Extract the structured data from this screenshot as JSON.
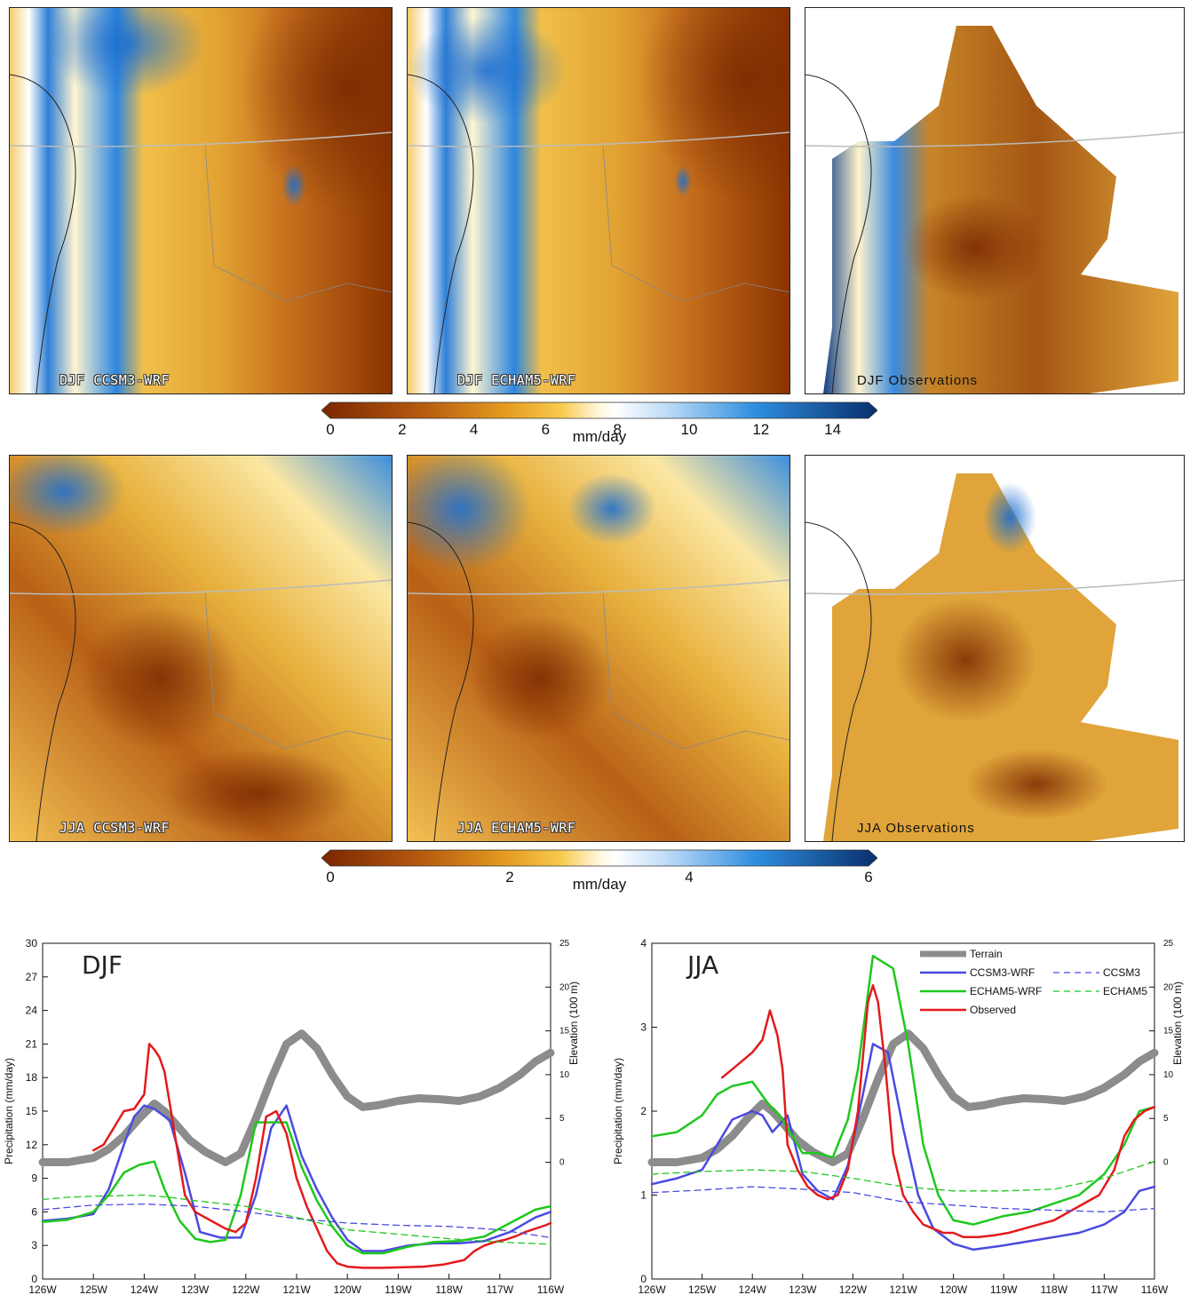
{
  "maps": {
    "djf": [
      {
        "label": "DJF CCSM3-WRF"
      },
      {
        "label": "DJF ECHAM5-WRF"
      },
      {
        "label": "DJF Observations"
      }
    ],
    "jja": [
      {
        "label": "JJA CCSM3-WRF"
      },
      {
        "label": "JJA ECHAM5-WRF"
      },
      {
        "label": "JJA Observations"
      }
    ]
  },
  "colorbars": {
    "djf": {
      "ticks": [
        "0",
        "2",
        "4",
        "6",
        "8",
        "10",
        "12",
        "14"
      ],
      "unit": "mm/day",
      "min": 0,
      "max": 15
    },
    "jja": {
      "ticks": [
        "0",
        "2",
        "4",
        "6"
      ],
      "unit": "mm/day",
      "min": 0,
      "max": 6
    }
  },
  "chart_data": [
    {
      "type": "line",
      "title": "DJF",
      "ylabel": "Precipitation (mm/day)",
      "y2label": "Elevation (100 m)",
      "ylim": [
        0,
        30
      ],
      "yticks": [
        "0",
        "3",
        "6",
        "9",
        "12",
        "15",
        "18",
        "21",
        "24",
        "27",
        "30"
      ],
      "y2lim": [
        -13.333,
        25
      ],
      "y2ticks": [
        "0",
        "5",
        "10",
        "15",
        "20",
        "25"
      ],
      "xlim": [
        -126,
        -116
      ],
      "xticks": [
        "126W",
        "125W",
        "124W",
        "123W",
        "122W",
        "121W",
        "120W",
        "119W",
        "118W",
        "117W",
        "116W"
      ],
      "series": [
        {
          "name": "Terrain",
          "axis": "right",
          "color": "#8c8c8c",
          "width": 9,
          "dash": "",
          "x": [
            -126,
            -125.5,
            -125,
            -124.7,
            -124.4,
            -124.1,
            -123.8,
            -123.6,
            -123.4,
            -123.1,
            -122.8,
            -122.4,
            -122.1,
            -121.8,
            -121.5,
            -121.2,
            -120.9,
            -120.6,
            -120.3,
            -120,
            -119.7,
            -119.4,
            -119,
            -118.6,
            -118.2,
            -117.8,
            -117.4,
            -117,
            -116.6,
            -116.3,
            -116
          ],
          "y": [
            0,
            0,
            0.5,
            1.5,
            3,
            5,
            6.7,
            5.8,
            4.5,
            2.5,
            1.2,
            0,
            1,
            5,
            9.5,
            13.5,
            14.7,
            13,
            10,
            7.5,
            6.3,
            6.5,
            7,
            7.3,
            7.2,
            7,
            7.5,
            8.5,
            10,
            11.5,
            12.5
          ]
        },
        {
          "name": "CCSM3-WRF",
          "axis": "left",
          "color": "#4a4ae0",
          "width": 2.5,
          "dash": "",
          "x": [
            -126,
            -125.5,
            -125,
            -124.7,
            -124.4,
            -124.2,
            -124,
            -123.8,
            -123.5,
            -123.2,
            -122.9,
            -122.5,
            -122.1,
            -121.8,
            -121.5,
            -121.2,
            -120.9,
            -120.6,
            -120.3,
            -120,
            -119.7,
            -119.3,
            -118.8,
            -118.3,
            -117.8,
            -117.3,
            -116.8,
            -116.3,
            -116
          ],
          "y": [
            5.2,
            5.4,
            5.8,
            8,
            12,
            14.5,
            15.5,
            15.2,
            14.2,
            9.5,
            4.2,
            3.7,
            3.7,
            7.5,
            13.5,
            15.5,
            11,
            8,
            5.5,
            3.5,
            2.5,
            2.5,
            3,
            3.2,
            3.2,
            3.4,
            4.2,
            5.5,
            6
          ]
        },
        {
          "name": "ECHAM5-WRF",
          "axis": "left",
          "color": "#1ec81e",
          "width": 2.5,
          "dash": "",
          "x": [
            -126,
            -125.5,
            -125,
            -124.7,
            -124.4,
            -124.1,
            -123.8,
            -123.6,
            -123.3,
            -123,
            -122.7,
            -122.4,
            -122.1,
            -121.8,
            -121.5,
            -121.2,
            -120.9,
            -120.6,
            -120.3,
            -120,
            -119.7,
            -119.3,
            -118.8,
            -118.3,
            -117.8,
            -117.3,
            -116.8,
            -116.3,
            -116
          ],
          "y": [
            5.1,
            5.3,
            6,
            7.5,
            9.5,
            10.2,
            10.5,
            8,
            5.2,
            3.6,
            3.3,
            3.5,
            7.5,
            14,
            14,
            14,
            10,
            7,
            4.7,
            3,
            2.3,
            2.3,
            2.9,
            3.3,
            3.4,
            3.8,
            5,
            6.2,
            6.5
          ]
        },
        {
          "name": "Observed",
          "axis": "left",
          "color": "#e31a1c",
          "width": 2.5,
          "dash": "",
          "x": [
            -125,
            -124.8,
            -124.6,
            -124.4,
            -124.2,
            -124,
            -123.9,
            -123.8,
            -123.7,
            -123.6,
            -123.4,
            -123.2,
            -123,
            -122.8,
            -122.6,
            -122.4,
            -122.2,
            -122,
            -121.8,
            -121.6,
            -121.4,
            -121.2,
            -121,
            -120.8,
            -120.6,
            -120.4,
            -120.2,
            -120,
            -119.7,
            -119.3,
            -118.9,
            -118.5,
            -118.1,
            -117.7,
            -117.5,
            -117.3,
            -117.1,
            -116.9,
            -116.7,
            -116.5,
            -116.3,
            -116.1,
            -116
          ],
          "y": [
            11.5,
            12,
            13.5,
            15,
            15.2,
            16.5,
            21,
            20.5,
            19.8,
            18.5,
            13,
            7.5,
            6,
            5.5,
            5,
            4.5,
            4.2,
            5,
            9,
            14.5,
            15,
            13,
            9,
            6.5,
            4.5,
            2.5,
            1.4,
            1.1,
            1.0,
            1.0,
            1.05,
            1.1,
            1.3,
            1.7,
            2.5,
            3,
            3.3,
            3.5,
            3.8,
            4.2,
            4.5,
            4.8,
            5
          ]
        },
        {
          "name": "CCSM3",
          "axis": "left",
          "color": "#4a4ae0",
          "width": 1.3,
          "dash": "7,5",
          "x": [
            -126,
            -125,
            -124,
            -123,
            -122,
            -121,
            -120,
            -119,
            -118,
            -117,
            -116
          ],
          "y": [
            6.2,
            6.6,
            6.7,
            6.5,
            6.0,
            5.4,
            5.0,
            4.8,
            4.7,
            4.4,
            3.7
          ]
        },
        {
          "name": "ECHAM5",
          "axis": "left",
          "color": "#1ec81e",
          "width": 1.3,
          "dash": "7,5",
          "x": [
            -126,
            -125.5,
            -125,
            -124,
            -123.5,
            -123,
            -122,
            -121,
            -120,
            -119,
            -118,
            -117,
            -116
          ],
          "y": [
            7.1,
            7.3,
            7.4,
            7.5,
            7.3,
            7.0,
            6.5,
            5.5,
            4.4,
            4.0,
            3.6,
            3.3,
            3.1
          ]
        }
      ]
    },
    {
      "type": "line",
      "title": "JJA",
      "ylabel": "Precipitation (mm/day)",
      "y2label": "Elevation (100 m)",
      "ylim": [
        0,
        4
      ],
      "yticks": [
        "0",
        "1",
        "2",
        "3",
        "4"
      ],
      "y2lim": [
        -13.333,
        25
      ],
      "y2ticks": [
        "0",
        "5",
        "10",
        "15",
        "20",
        "25"
      ],
      "xlim": [
        -126,
        -116
      ],
      "xticks": [
        "126W",
        "125W",
        "124W",
        "123W",
        "122W",
        "121W",
        "120W",
        "119W",
        "118W",
        "117W",
        "116W"
      ],
      "legend": {
        "position": "top-right"
      },
      "series": [
        {
          "name": "Terrain",
          "axis": "right",
          "color": "#8c8c8c",
          "width": 9,
          "dash": "",
          "x": [
            -126,
            -125.5,
            -125,
            -124.7,
            -124.4,
            -124.1,
            -123.8,
            -123.6,
            -123.4,
            -123.1,
            -122.8,
            -122.4,
            -122.1,
            -121.8,
            -121.5,
            -121.2,
            -120.9,
            -120.6,
            -120.3,
            -120,
            -119.7,
            -119.4,
            -119,
            -118.6,
            -118.2,
            -117.8,
            -117.4,
            -117,
            -116.6,
            -116.3,
            -116
          ],
          "y": [
            0,
            0,
            0.5,
            1.5,
            3,
            5,
            6.7,
            5.8,
            4.5,
            2.5,
            1.2,
            0,
            1,
            5,
            9.5,
            13.5,
            14.7,
            13,
            10,
            7.5,
            6.3,
            6.5,
            7,
            7.3,
            7.2,
            7,
            7.5,
            8.5,
            10,
            11.5,
            12.5
          ]
        },
        {
          "name": "CCSM3-WRF",
          "axis": "left",
          "color": "#4a4ae0",
          "width": 2.5,
          "dash": "",
          "x": [
            -126,
            -125.5,
            -125,
            -124.7,
            -124.4,
            -124,
            -123.8,
            -123.6,
            -123.3,
            -123,
            -122.7,
            -122.4,
            -122.1,
            -121.8,
            -121.6,
            -121.3,
            -121,
            -120.7,
            -120.4,
            -120,
            -119.6,
            -119,
            -118.5,
            -118,
            -117.5,
            -117,
            -116.6,
            -116.3,
            -116
          ],
          "y": [
            1.13,
            1.2,
            1.3,
            1.6,
            1.9,
            2.0,
            1.95,
            1.75,
            1.95,
            1.25,
            1.05,
            0.95,
            1.35,
            2.2,
            2.8,
            2.7,
            1.8,
            1.0,
            0.6,
            0.42,
            0.35,
            0.4,
            0.45,
            0.5,
            0.55,
            0.65,
            0.8,
            1.05,
            1.1
          ]
        },
        {
          "name": "ECHAM5-WRF",
          "axis": "left",
          "color": "#1ec81e",
          "width": 2.5,
          "dash": "",
          "x": [
            -126,
            -125.5,
            -125,
            -124.7,
            -124.4,
            -124,
            -123.7,
            -123.4,
            -123,
            -122.7,
            -122.4,
            -122.1,
            -121.9,
            -121.6,
            -121.2,
            -120.9,
            -120.6,
            -120.3,
            -120,
            -119.6,
            -119,
            -118.5,
            -118,
            -117.5,
            -117,
            -116.6,
            -116.3,
            -116
          ],
          "y": [
            1.7,
            1.75,
            1.95,
            2.2,
            2.3,
            2.35,
            2.1,
            1.9,
            1.5,
            1.5,
            1.45,
            1.9,
            2.5,
            3.85,
            3.7,
            2.8,
            1.6,
            1.0,
            0.7,
            0.65,
            0.75,
            0.8,
            0.9,
            1.0,
            1.25,
            1.6,
            2.0,
            2.05
          ]
        },
        {
          "name": "Observed",
          "axis": "left",
          "color": "#e31a1c",
          "width": 2.5,
          "dash": "",
          "x": [
            -124.6,
            -124.4,
            -124.2,
            -124,
            -123.8,
            -123.65,
            -123.5,
            -123.4,
            -123.3,
            -123.1,
            -122.9,
            -122.7,
            -122.5,
            -122.3,
            -122.1,
            -121.9,
            -121.7,
            -121.6,
            -121.5,
            -121.35,
            -121.2,
            -121,
            -120.8,
            -120.6,
            -120.4,
            -120.2,
            -120,
            -119.8,
            -119.5,
            -119.2,
            -118.9,
            -118.6,
            -118.3,
            -118,
            -117.7,
            -117.4,
            -117.1,
            -116.8,
            -116.6,
            -116.4,
            -116.2,
            -116
          ],
          "y": [
            2.4,
            2.5,
            2.6,
            2.7,
            2.85,
            3.2,
            2.9,
            2.5,
            1.6,
            1.3,
            1.1,
            1.0,
            0.95,
            1.0,
            1.3,
            2.0,
            3.3,
            3.5,
            3.3,
            2.5,
            1.5,
            1.0,
            0.8,
            0.65,
            0.6,
            0.55,
            0.55,
            0.5,
            0.5,
            0.52,
            0.55,
            0.6,
            0.65,
            0.7,
            0.8,
            0.9,
            1.0,
            1.3,
            1.7,
            1.9,
            2.0,
            2.05
          ]
        },
        {
          "name": "CCSM3",
          "axis": "left",
          "color": "#4a4ae0",
          "width": 1.3,
          "dash": "7,5",
          "x": [
            -126,
            -125,
            -124,
            -123,
            -122,
            -121,
            -120,
            -119,
            -118,
            -117,
            -116
          ],
          "y": [
            1.03,
            1.06,
            1.1,
            1.07,
            1.03,
            0.92,
            0.88,
            0.84,
            0.82,
            0.8,
            0.84
          ]
        },
        {
          "name": "ECHAM5",
          "axis": "left",
          "color": "#1ec81e",
          "width": 1.3,
          "dash": "7,5",
          "x": [
            -126,
            -125,
            -124,
            -123,
            -122,
            -121,
            -120,
            -119,
            -118,
            -117,
            -116
          ],
          "y": [
            1.25,
            1.28,
            1.3,
            1.28,
            1.2,
            1.1,
            1.05,
            1.05,
            1.07,
            1.2,
            1.4
          ]
        }
      ]
    }
  ]
}
